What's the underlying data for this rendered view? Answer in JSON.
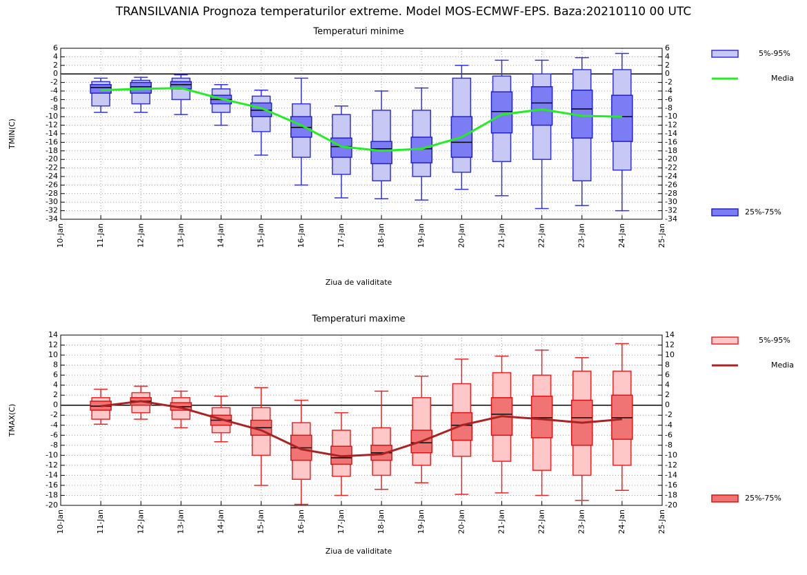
{
  "title": "TRANSILVANIA  Prognoza temperaturilor extreme.  Model MOS-ECMWF-EPS. Baza:20210110 00 UTC",
  "chart_data": [
    {
      "type": "box",
      "title": "Temperaturi minime",
      "title_color": "#1a1aff",
      "ylabel": "TMIN(C)",
      "xlabel": "Ziua de validitate",
      "categories": [
        "10-Jan",
        "11-Jan",
        "12-Jan",
        "13-Jan",
        "14-Jan",
        "15-Jan",
        "16-Jan",
        "17-Jan",
        "18-Jan",
        "19-Jan",
        "20-Jan",
        "21-Jan",
        "22-Jan",
        "23-Jan",
        "24-Jan",
        "25-Jan"
      ],
      "ylim": [
        -34,
        6
      ],
      "yticks": [
        -34,
        -32,
        -30,
        -28,
        -26,
        -24,
        -22,
        -20,
        -18,
        -16,
        -14,
        -12,
        -10,
        -8,
        -6,
        -4,
        -2,
        0,
        2,
        4,
        6
      ],
      "grid": true,
      "legend": "right",
      "whiskers": {
        "color": "#3030e0",
        "low": [
          null,
          -9,
          -9,
          -9.5,
          -12,
          -19,
          -26,
          -29,
          -29.2,
          -29.5,
          -27,
          -28.5,
          -31.5,
          -30.8,
          -32,
          null
        ],
        "high": [
          null,
          -1,
          -0.8,
          -0.2,
          -2.5,
          -3.8,
          -1,
          -7.5,
          -4,
          -3.3,
          2,
          3.2,
          3.2,
          3.8,
          4.8,
          null
        ]
      },
      "outer": {
        "name": "5%-95%",
        "fill": "#c8c8f4",
        "stroke": "#3030e0",
        "low": [
          null,
          -7.5,
          -7,
          -6,
          -9,
          -13.5,
          -19.5,
          -23.5,
          -25,
          -24,
          -23,
          -20.5,
          -20,
          -25,
          -22.5,
          null
        ],
        "high": [
          null,
          -1.8,
          -1.5,
          -1,
          -3.5,
          -5.2,
          -7,
          -9.5,
          -8.5,
          -8.5,
          -1,
          -0.5,
          0,
          1,
          1,
          null
        ]
      },
      "inner": {
        "name": "25%-75%",
        "fill": "#7c7cf4",
        "stroke": "#2020d0",
        "low": [
          null,
          -4.5,
          -4.5,
          -3.5,
          -7,
          -10,
          -14.8,
          -19.5,
          -21,
          -20.8,
          -19.5,
          -13.8,
          -12,
          -15,
          -15.8,
          null
        ],
        "high": [
          null,
          -2.5,
          -2,
          -1.8,
          -5,
          -6.8,
          -10,
          -15,
          -15.8,
          -14.8,
          -10,
          -4.2,
          -3,
          -3.8,
          -5,
          null
        ]
      },
      "median": {
        "color": "#000000",
        "values": [
          null,
          -3.2,
          -3,
          -2.5,
          -6,
          -8.5,
          -12.5,
          -17,
          -17.5,
          -17.5,
          -16,
          -8.8,
          -6.8,
          -8.2,
          -10,
          null
        ]
      },
      "mean": {
        "name": "Media",
        "color": "#22ee22",
        "values": [
          null,
          -3.8,
          -3.5,
          -3.3,
          -5.8,
          -8,
          -12,
          -17,
          -18,
          -17.5,
          -14.8,
          -9.5,
          -8.3,
          -9.8,
          -10,
          null
        ]
      }
    },
    {
      "type": "box",
      "title": "Temperaturi maxime",
      "title_color": "#ff1a1a",
      "ylabel": "TMAX(C)",
      "xlabel": "Ziua de validitate",
      "categories": [
        "10-Jan",
        "11-Jan",
        "12-Jan",
        "13-Jan",
        "14-Jan",
        "15-Jan",
        "16-Jan",
        "17-Jan",
        "18-Jan",
        "19-Jan",
        "20-Jan",
        "21-Jan",
        "22-Jan",
        "23-Jan",
        "24-Jan",
        "25-Jan"
      ],
      "ylim": [
        -20,
        14
      ],
      "yticks": [
        -20,
        -18,
        -16,
        -14,
        -12,
        -10,
        -8,
        -6,
        -4,
        -2,
        0,
        2,
        4,
        6,
        8,
        10,
        12,
        14
      ],
      "grid": true,
      "legend": "right",
      "whiskers": {
        "color": "#ee2222",
        "low": [
          null,
          -3.8,
          -2.8,
          -4.5,
          -7.3,
          -16,
          -19.8,
          -18,
          -16.8,
          -15.5,
          -17.8,
          -17.5,
          -18,
          -19,
          -17,
          null
        ],
        "high": [
          null,
          3.2,
          3.8,
          2.8,
          1.8,
          3.5,
          1,
          -1.5,
          2.8,
          5.8,
          9.2,
          9.8,
          11,
          9.5,
          12.3,
          null
        ]
      },
      "outer": {
        "name": "5%-95%",
        "fill": "#ffc8c8",
        "stroke": "#ee2222",
        "low": [
          null,
          -2.8,
          -1.5,
          -2.8,
          -5.5,
          -10,
          -14.8,
          -14.2,
          -14,
          -12,
          -10.2,
          -11.2,
          -13,
          -14,
          -12,
          null
        ],
        "high": [
          null,
          1.5,
          2.5,
          1.5,
          -0.5,
          -0.5,
          -3.5,
          -5,
          -4.5,
          1.5,
          4.3,
          6.5,
          6,
          6.8,
          6.8,
          null
        ]
      },
      "inner": {
        "name": "25%-75%",
        "fill": "#f07474",
        "stroke": "#dd1111",
        "low": [
          null,
          -1,
          0,
          -1,
          -4,
          -6,
          -11,
          -11.8,
          -11,
          -9.5,
          -7,
          -6,
          -6.5,
          -8,
          -6.8,
          null
        ],
        "high": [
          null,
          0.8,
          1.5,
          0.5,
          -2,
          -3,
          -6,
          -8.2,
          -8,
          -5,
          -1.5,
          1.5,
          1.8,
          1,
          2,
          null
        ]
      },
      "median": {
        "color": "#000000",
        "values": [
          null,
          -0.2,
          0.8,
          -0.3,
          -3,
          -4.5,
          -8.5,
          -10.5,
          -9.5,
          -7.5,
          -4,
          -1.8,
          -2.5,
          -2.5,
          -2.5,
          null
        ]
      },
      "mean": {
        "name": "Media",
        "color": "#aa2222",
        "values": [
          null,
          -0.2,
          0.8,
          -0.5,
          -2.8,
          -5,
          -8.8,
          -10.2,
          -9.8,
          -7.2,
          -4,
          -2.2,
          -2.8,
          -3.5,
          -2.8,
          null
        ]
      }
    }
  ]
}
